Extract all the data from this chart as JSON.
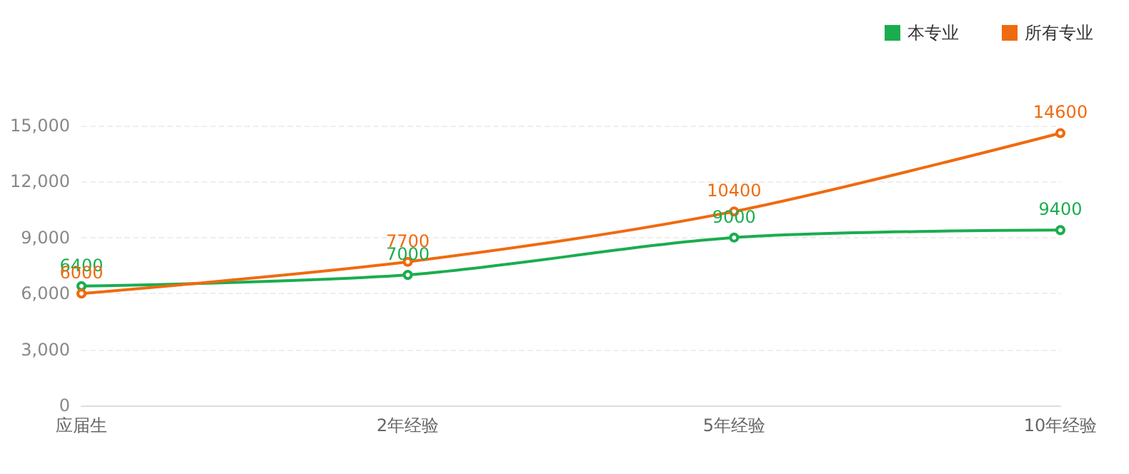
{
  "chart_data": {
    "type": "line",
    "categories": [
      "应届生",
      "2年经验",
      "5年经验",
      "10年经验"
    ],
    "series": [
      {
        "name": "本专业",
        "color": "#1aad4f",
        "values": [
          6400,
          7000,
          9000,
          9400
        ]
      },
      {
        "name": "所有专业",
        "color": "#f06a0f",
        "values": [
          6000,
          7700,
          10400,
          14600
        ]
      }
    ],
    "ylim": [
      0,
      15000
    ],
    "yticks": [
      0,
      {
        "value": 3000,
        "label": "3,000"
      },
      {
        "value": 6000,
        "label": "6,000"
      },
      {
        "value": 9000,
        "label": "9,000"
      },
      {
        "value": 12000,
        "label": "12,000"
      },
      {
        "value": 15000,
        "label": "15,000"
      }
    ],
    "grid": "y",
    "legend": "top right",
    "marker": "circle",
    "line_style": "solid",
    "data_labels": true
  }
}
